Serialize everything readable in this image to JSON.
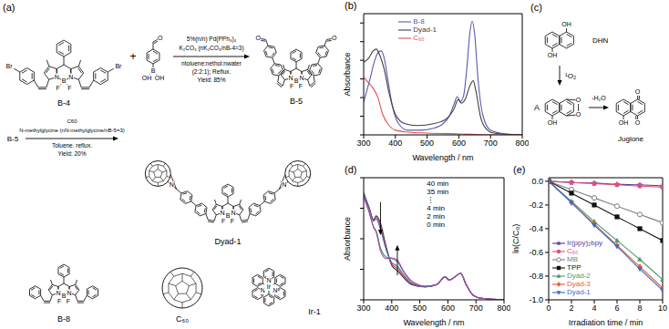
{
  "figure": {
    "atoms": {
      "boron": "B",
      "nitrogen": "N",
      "fluorine": "F",
      "bromine": "Br",
      "oxygen": "O",
      "hydroxyl": "OH",
      "iridium": "Ir"
    },
    "a": {
      "title": "(a)",
      "plus": "+",
      "compounds": {
        "b4": "B-4",
        "b5": "B-5",
        "dyad1": "Dyad-1",
        "b8": "B-8",
        "c60": "C₆₀",
        "ir1": "Ir-1"
      },
      "reaction1": {
        "above": [
          "5%(n/n) Pd(PPh₃)₄",
          "K₂CO₃ (nK₂CO₃/nB-4=3)"
        ],
        "below": [
          "ntoluene:nethol:nwater",
          "(2:2:1); Reflux.",
          "Yield: 85%"
        ]
      },
      "reaction2": {
        "start": "B-5",
        "above": [
          "C60",
          "N-methylglycine (nN-methylglycine/nB-5=3)"
        ],
        "below": [
          "Toluene. reflux.",
          "Yield: 20%"
        ]
      }
    },
    "c": {
      "title": "(c)",
      "compounds": {
        "start": "DHN",
        "intermediate": "A",
        "product": "Juglone"
      },
      "reagents": {
        "oxidant": "¹O₂",
        "elimination": "-H₂O"
      }
    }
  },
  "chart_data": [
    {
      "type": "line",
      "title": "(b)",
      "x_label": "Wavelength / nm",
      "y_label": "Absorbance",
      "xlim": [
        300,
        800
      ],
      "xticks": [
        300,
        400,
        500,
        600,
        700,
        800
      ],
      "ylim": [
        0,
        1.3
      ],
      "yticks": [
        0,
        0.2,
        0.4,
        0.6,
        0.8,
        1,
        1.2
      ],
      "tick_labels": "x",
      "legend": "top",
      "series": [
        {
          "name": "B-8",
          "color": "#5a5ab4",
          "x": [
            300,
            320,
            335,
            345,
            355,
            365,
            375,
            390,
            410,
            440,
            480,
            520,
            550,
            570,
            585,
            595,
            605,
            615,
            625,
            635,
            642,
            650,
            660,
            675,
            700,
            750,
            800
          ],
          "values": [
            0.35,
            0.6,
            0.8,
            0.88,
            0.9,
            0.82,
            0.62,
            0.32,
            0.12,
            0.05,
            0.05,
            0.07,
            0.12,
            0.2,
            0.33,
            0.41,
            0.36,
            0.42,
            0.7,
            1.1,
            1.22,
            1.08,
            0.62,
            0.22,
            0.05,
            0.01,
            0
          ]
        },
        {
          "name": "Dyad-1",
          "color": "#404040",
          "x": [
            300,
            315,
            330,
            340,
            350,
            365,
            380,
            400,
            430,
            470,
            520,
            560,
            585,
            598,
            608,
            620,
            632,
            645,
            655,
            668,
            685,
            710,
            800
          ],
          "values": [
            0.78,
            0.82,
            0.9,
            0.92,
            0.86,
            0.7,
            0.45,
            0.22,
            0.12,
            0.1,
            0.12,
            0.17,
            0.28,
            0.38,
            0.34,
            0.38,
            0.5,
            0.58,
            0.45,
            0.2,
            0.07,
            0.02,
            0
          ]
        },
        {
          "name": "C₆₀",
          "color": "#e05050",
          "x": [
            300,
            315,
            330,
            345,
            360,
            380,
            400,
            440,
            500,
            600,
            700,
            800
          ],
          "values": [
            0.62,
            0.56,
            0.5,
            0.4,
            0.22,
            0.1,
            0.05,
            0.03,
            0.02,
            0.01,
            0,
            0
          ]
        }
      ]
    },
    {
      "type": "line",
      "title": "(d)",
      "x_label": "Wavelength / nm",
      "y_label": "Absorbance",
      "xlim": [
        300,
        800
      ],
      "xticks": [
        300,
        400,
        500,
        600,
        700,
        800
      ],
      "ylim": [
        0,
        1.6
      ],
      "yticks": [
        0,
        0.4,
        0.8,
        1.2,
        1.6
      ],
      "tick_labels": "x",
      "annotations": [
        "40 min",
        "35 min",
        "⋮",
        "4 min",
        "2 min",
        "0 min"
      ],
      "x": [
        300,
        320,
        335,
        345,
        360,
        380,
        400,
        420,
        440,
        470,
        520,
        560,
        590,
        605,
        625,
        645,
        665,
        690,
        720,
        800
      ],
      "series": [
        {
          "name": "0 min",
          "color": "#303030",
          "values": [
            1.4,
            1.2,
            1.05,
            1.1,
            1.0,
            0.7,
            0.45,
            0.38,
            0.3,
            0.2,
            0.17,
            0.2,
            0.3,
            0.26,
            0.3,
            0.35,
            0.2,
            0.06,
            0.02,
            0
          ]
        },
        {
          "name": "2 min",
          "color": "#d04040",
          "values": [
            1.4,
            1.2,
            1.04,
            1.08,
            0.96,
            0.68,
            0.47,
            0.41,
            0.32,
            0.21,
            0.17,
            0.2,
            0.3,
            0.26,
            0.3,
            0.35,
            0.2,
            0.06,
            0.02,
            0
          ]
        },
        {
          "name": "4 min",
          "color": "#4060c0",
          "values": [
            1.39,
            1.19,
            1.03,
            1.06,
            0.92,
            0.66,
            0.49,
            0.44,
            0.34,
            0.22,
            0.17,
            0.2,
            0.3,
            0.26,
            0.3,
            0.35,
            0.2,
            0.06,
            0.02,
            0
          ]
        },
        {
          "name": "35 min",
          "color": "#40a060",
          "values": [
            1.36,
            1.15,
            0.96,
            0.9,
            0.68,
            0.56,
            0.54,
            0.5,
            0.38,
            0.24,
            0.18,
            0.2,
            0.3,
            0.26,
            0.3,
            0.35,
            0.2,
            0.06,
            0.02,
            0
          ]
        },
        {
          "name": "40 min",
          "color": "#b040b0",
          "values": [
            1.35,
            1.14,
            0.95,
            0.88,
            0.64,
            0.54,
            0.55,
            0.52,
            0.39,
            0.25,
            0.18,
            0.2,
            0.3,
            0.26,
            0.3,
            0.35,
            0.2,
            0.06,
            0.02,
            0
          ]
        }
      ]
    },
    {
      "type": "line",
      "title": "(e)",
      "x_label": "Irradiation time / min",
      "y_label": "ln(C/C₀)",
      "xlim": [
        0,
        10
      ],
      "xticks": [
        0,
        2,
        4,
        6,
        8,
        10
      ],
      "ylim": [
        -1.0,
        0.03
      ],
      "yticks": [
        {
          "value": -1.0,
          "label": "-1.0"
        },
        {
          "value": -0.8,
          "label": "-0.8"
        },
        {
          "value": -0.6,
          "label": "-0.6"
        },
        {
          "value": -0.4,
          "label": "-0.4"
        },
        {
          "value": -0.2,
          "label": "-0.2"
        },
        {
          "value": 0,
          "label": "0.0"
        }
      ],
      "legend": "lower left",
      "x": [
        0,
        2,
        4,
        6,
        8,
        10
      ],
      "series": [
        {
          "name": "Ir(ppy)₂bpy",
          "color": "#5b3a9b",
          "marker": "star",
          "values": [
            0,
            -0.01,
            -0.015,
            -0.025,
            -0.03,
            -0.04
          ]
        },
        {
          "name": "C₆₀",
          "color": "#e0507a",
          "marker": "circle",
          "values": [
            0,
            -0.01,
            -0.02,
            -0.03,
            -0.04,
            -0.05
          ]
        },
        {
          "name": "MB",
          "color": "#808080",
          "marker": "circle_open",
          "values": [
            0,
            -0.07,
            -0.14,
            -0.21,
            -0.28,
            -0.35
          ]
        },
        {
          "name": "TPP",
          "color": "#111111",
          "marker": "square",
          "values": [
            0,
            -0.1,
            -0.2,
            -0.3,
            -0.4,
            -0.5
          ]
        },
        {
          "name": "Dyad-2",
          "color": "#4a9a6a",
          "marker": "triangle",
          "values": [
            0,
            -0.17,
            -0.34,
            -0.5,
            -0.66,
            -0.83
          ]
        },
        {
          "name": "Dyad-3",
          "color": "#e06030",
          "marker": "diamond",
          "values": [
            0,
            -0.18,
            -0.36,
            -0.54,
            -0.72,
            -0.9
          ]
        },
        {
          "name": "Dyad-1",
          "color": "#3a6ad0",
          "marker": "triangle_down",
          "values": [
            0,
            -0.18,
            -0.37,
            -0.55,
            -0.74,
            -0.92
          ]
        }
      ]
    }
  ]
}
